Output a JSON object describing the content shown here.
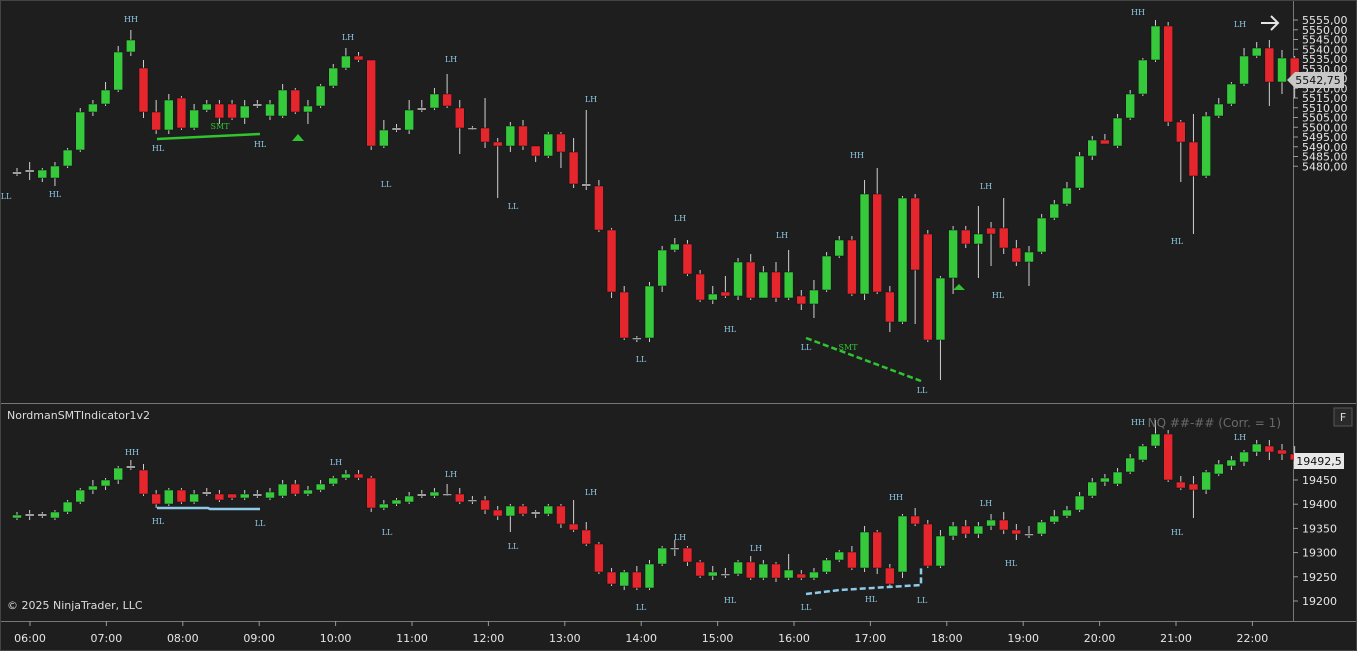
{
  "indicator_title": "NordmanSMTIndicator1v2",
  "copyright": "© 2025 NinjaTrader, LLC",
  "correlation_label": "NQ ##-## (Corr. = 1)",
  "f_button_label": "F",
  "colors": {
    "background": "#1e1e1e",
    "up": "#36c93c",
    "down": "#e5262c",
    "label": "#8ecbe8",
    "smt_line": "#2fc430",
    "smt_line_lower": "#8ecbe8",
    "wick": "#d0d0d0"
  },
  "top_axis": {
    "ticks": [
      "5555,00",
      "5550,00",
      "5545,00",
      "5540,00",
      "5535,00",
      "5530,00",
      "5525,00",
      "5520,00",
      "5515,00",
      "5510,00",
      "5505,00",
      "5500,00",
      "5495,00",
      "5490,00",
      "5485,00",
      "5480,00"
    ],
    "current_price": "5542,75"
  },
  "bottom_axis": {
    "ticks": [
      "19450",
      "19400",
      "19350",
      "19300",
      "19250",
      "19200"
    ],
    "current_price": "19492,5"
  },
  "time_axis": [
    "06:00",
    "07:00",
    "08:00",
    "09:00",
    "10:00",
    "11:00",
    "12:00",
    "13:00",
    "14:00",
    "15:00",
    "16:00",
    "17:00",
    "18:00",
    "19:00",
    "20:00",
    "21:00",
    "22:00"
  ],
  "top_labels": [
    {
      "text": "LL"
    },
    {
      "text": "HH"
    },
    {
      "text": "HL"
    },
    {
      "text": "HL"
    },
    {
      "text": "HL"
    },
    {
      "text": "SMT"
    },
    {
      "text": "LH"
    },
    {
      "text": "LH"
    },
    {
      "text": "LL"
    },
    {
      "text": "LL"
    },
    {
      "text": "LH"
    },
    {
      "text": "LL"
    },
    {
      "text": "LH"
    },
    {
      "text": "HL"
    },
    {
      "text": "LH"
    },
    {
      "text": "LL"
    },
    {
      "text": "SMT"
    },
    {
      "text": "HH"
    },
    {
      "text": "LL"
    },
    {
      "text": "LH"
    },
    {
      "text": "HL"
    },
    {
      "text": "HH"
    },
    {
      "text": "HL"
    },
    {
      "text": "LH"
    }
  ],
  "bottom_labels": [
    {
      "text": "HH"
    },
    {
      "text": "HL"
    },
    {
      "text": "LL"
    },
    {
      "text": "LH"
    },
    {
      "text": "LH"
    },
    {
      "text": "LL"
    },
    {
      "text": "LL"
    },
    {
      "text": "LH"
    },
    {
      "text": "LL"
    },
    {
      "text": "LH"
    },
    {
      "text": "HL"
    },
    {
      "text": "LH"
    },
    {
      "text": "LL"
    },
    {
      "text": "HH"
    },
    {
      "text": "HL"
    },
    {
      "text": "LL"
    },
    {
      "text": "LH"
    },
    {
      "text": "HL"
    },
    {
      "text": "HH"
    },
    {
      "text": "HL"
    },
    {
      "text": "LH"
    }
  ]
}
